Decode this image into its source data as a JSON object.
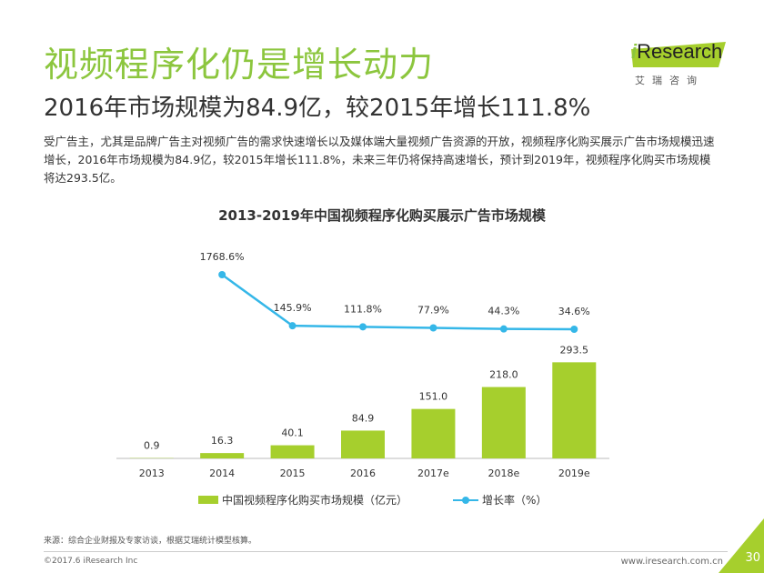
{
  "header": {
    "title": "视频程序化仍是增长动力",
    "subtitle": "2016年市场规模为84.9亿，较2015年增长111.8%",
    "description": "受广告主，尤其是品牌广告主对视频广告的需求快速增长以及媒体端大量视频广告资源的开放，视频程序化购买展示广告市场规模迅速增长，2016年市场规模为84.9亿，较2015年增长111.8%，未来三年仍将保持高速增长，预计到2019年，视频程序化购买市场规模将达293.5亿。"
  },
  "logo": {
    "brand_prefix": "i",
    "brand_name": "Research",
    "tagline": "艾瑞咨询"
  },
  "colors": {
    "title_green": "#8cc63e",
    "bar": "#a6cf2d",
    "line": "#35b7e8"
  },
  "chart_data": {
    "type": "bar",
    "title": "2013-2019年中国视频程序化购买展示广告市场规模",
    "categories": [
      "2013",
      "2014",
      "2015",
      "2016",
      "2017e",
      "2018e",
      "2019e"
    ],
    "series": [
      {
        "name": "中国视频程序化购买市场规模（亿元）",
        "type": "bar",
        "values": [
          0.9,
          16.3,
          40.1,
          84.9,
          151.0,
          218.0,
          293.5
        ],
        "labels": [
          "0.9",
          "16.3",
          "40.1",
          "84.9",
          "151.0",
          "218.0",
          "293.5"
        ]
      },
      {
        "name": "增长率（%）",
        "type": "line",
        "values": [
          null,
          1768.6,
          145.9,
          111.8,
          77.9,
          44.3,
          34.6
        ],
        "labels": [
          "",
          "1768.6%",
          "145.9%",
          "111.8%",
          "77.9%",
          "44.3%",
          "34.6%"
        ]
      }
    ],
    "legend_position": "bottom",
    "grid": false
  },
  "footer": {
    "source": "来源：综合企业财报及专家访谈，根据艾瑞统计模型核算。",
    "copyright": "©2017.6 iResearch Inc",
    "website": "www.iresearch.com.cn",
    "page_number": "30"
  }
}
